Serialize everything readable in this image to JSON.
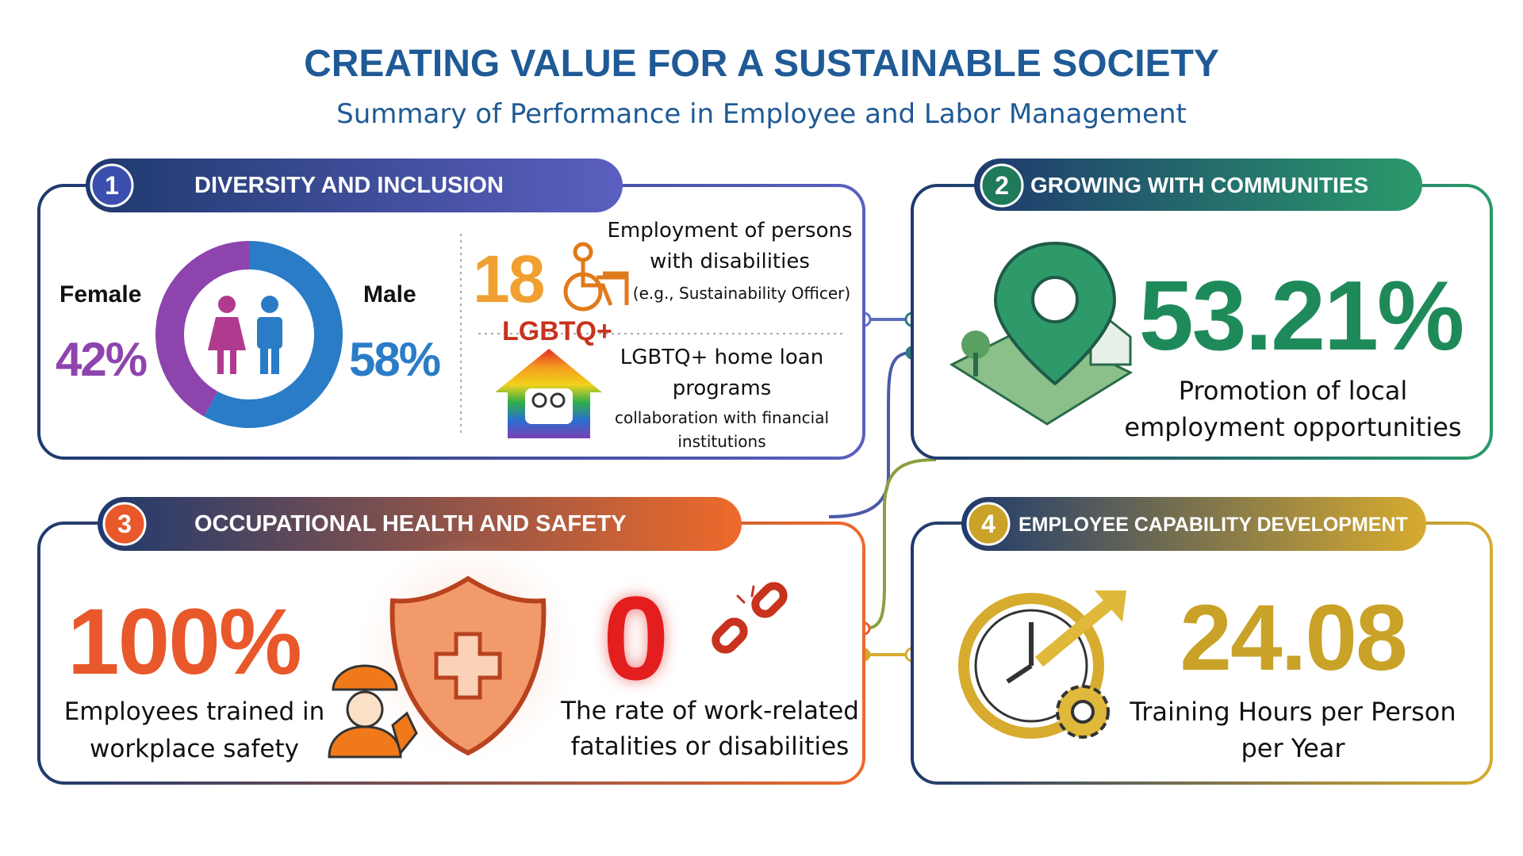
{
  "header": {
    "title": "CREATING VALUE FOR A SUSTAINABLE SOCIETY",
    "subtitle": "Summary of Performance in Employee and Labor Management"
  },
  "sections": [
    {
      "number": "1",
      "title": "DIVERSITY AND INCLUSION",
      "gender": [
        {
          "name": "Female",
          "value": 42,
          "label": "42%",
          "color": "#8e44ad"
        },
        {
          "name": "Male",
          "value": 58,
          "label": "58%",
          "color": "#2a7cc7"
        }
      ],
      "disability": {
        "value": "18",
        "text": "Employment of persons with disabilities",
        "note": "(e.g., Sustainability Officer)"
      },
      "lgbtq": {
        "badge": "LGBTQ+",
        "text": "LGBTQ+ home loan programs",
        "note": "collaboration with financial institutions"
      }
    },
    {
      "number": "2",
      "title": "GROWING WITH COMMUNITIES",
      "value": "53.21%",
      "text": "Promotion of local employment opportunities"
    },
    {
      "number": "3",
      "title": "OCCUPATIONAL HEALTH AND SAFETY",
      "stats": [
        {
          "value": "100%",
          "text": "Employees trained in workplace safety"
        },
        {
          "value": "0",
          "text": "The rate of work-related fatalities or disabilities"
        }
      ]
    },
    {
      "number": "4",
      "title": "EMPLOYEE CAPABILITY DEVELOPMENT",
      "value": "24.08",
      "text": "Training Hours per Person per Year"
    }
  ]
}
